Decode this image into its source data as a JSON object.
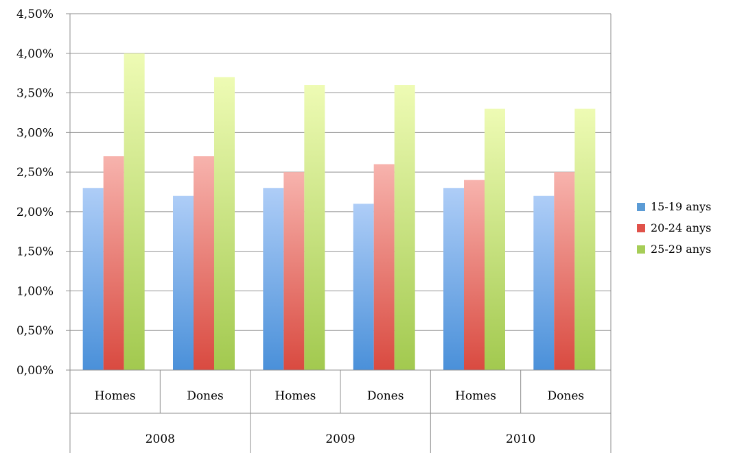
{
  "chart_data": {
    "type": "bar",
    "title": "",
    "xlabel": "",
    "ylabel": "",
    "ylim": [
      0,
      0.045
    ],
    "y_ticks": [
      "0,00%",
      "0,50%",
      "1,00%",
      "1,50%",
      "2,00%",
      "2,50%",
      "3,00%",
      "3,50%",
      "4,00%",
      "4,50%"
    ],
    "grid": true,
    "legend_position": "right",
    "categories": [
      "Homes",
      "Dones",
      "Homes",
      "Dones",
      "Homes",
      "Dones"
    ],
    "groups": [
      "2008",
      "2009",
      "2010"
    ],
    "series": [
      {
        "name": "15-19 anys",
        "color": "#5b9bd5",
        "values": [
          0.023,
          0.022,
          0.023,
          0.021,
          0.023,
          0.022
        ]
      },
      {
        "name": "20-24 anys",
        "color": "#e0524a",
        "values": [
          0.027,
          0.027,
          0.025,
          0.026,
          0.024,
          0.025
        ]
      },
      {
        "name": "25-29 anys",
        "color": "#a6cd57",
        "values": [
          0.04,
          0.037,
          0.036,
          0.036,
          0.033,
          0.033
        ]
      }
    ]
  }
}
